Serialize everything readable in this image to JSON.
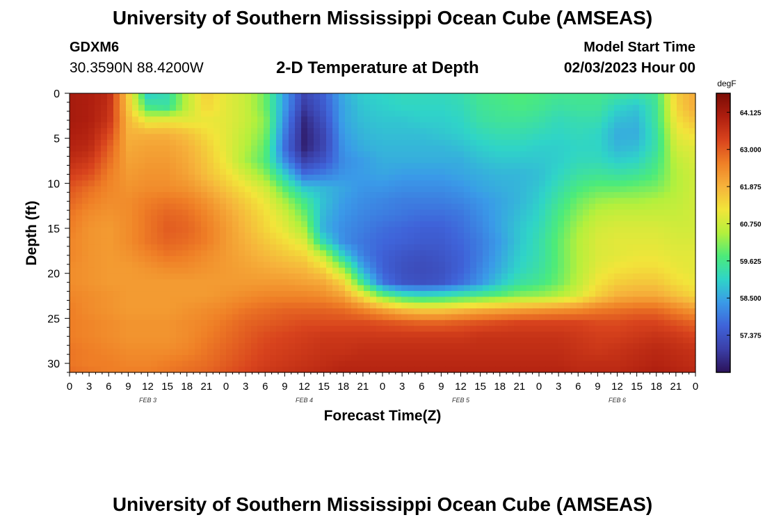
{
  "header": {
    "title": "University of Southern Mississippi Ocean Cube (AMSEAS)",
    "station": "GDXM6",
    "coords": "30.3590N  88.4200W",
    "plot_title": "2-D Temperature at Depth",
    "start_label": "Model Start Time",
    "start_value": "02/03/2023 Hour 00"
  },
  "footer": {
    "title": "University of Southern Mississippi Ocean Cube (AMSEAS)"
  },
  "chart_data": {
    "type": "heatmap",
    "title": "2-D Temperature at Depth",
    "xlabel": "Forecast Time(Z)",
    "ylabel": "Depth (ft)",
    "x_tick_labels": [
      "0",
      "3",
      "6",
      "9",
      "12",
      "15",
      "18",
      "21",
      "0",
      "3",
      "6",
      "9",
      "12",
      "15",
      "18",
      "21",
      "0",
      "3",
      "6",
      "9",
      "12",
      "15",
      "18",
      "21",
      "0",
      "3",
      "6",
      "9",
      "12",
      "15",
      "18",
      "21",
      "0"
    ],
    "x_range_hours": [
      0,
      96
    ],
    "date_labels": [
      {
        "label": "FEB 3",
        "hour": 12
      },
      {
        "label": "FEB 4",
        "hour": 36
      },
      {
        "label": "FEB 5",
        "hour": 60
      },
      {
        "label": "FEB 6",
        "hour": 84
      }
    ],
    "y_ticks": [
      "0",
      "5",
      "10",
      "15",
      "20",
      "25",
      "30"
    ],
    "y_range": [
      0,
      31
    ],
    "y_inverted": true,
    "colorbar": {
      "unit": "degF",
      "min": 56.25,
      "max": 64.7,
      "tick_labels": [
        "64.125",
        "63.000",
        "61.875",
        "60.750",
        "59.625",
        "58.500",
        "57.375"
      ],
      "tick_values": [
        64.125,
        63.0,
        61.875,
        60.75,
        59.625,
        58.5,
        57.375
      ],
      "colors": [
        "#2b1259",
        "#3b3fa8",
        "#3f63d9",
        "#3a9ae8",
        "#2fd4c8",
        "#4ceb7a",
        "#b4f03c",
        "#f2e53a",
        "#f6b23b",
        "#ef7f26",
        "#d8431d",
        "#ae1e0f",
        "#7a0c05"
      ]
    },
    "depth_levels_ft": [
      0,
      1.5,
      3,
      4.5,
      6,
      7.5,
      9,
      10.5,
      12,
      13.5,
      15,
      16.5,
      18,
      19.5,
      21,
      22.5,
      24,
      25.5,
      27,
      28.5,
      30,
      31
    ],
    "time_hours": [
      0,
      3,
      6,
      9,
      12,
      15,
      18,
      21,
      24,
      27,
      30,
      33,
      36,
      39,
      42,
      45,
      48,
      51,
      54,
      57,
      60,
      63,
      66,
      69,
      72,
      75,
      78,
      81,
      84,
      87,
      90,
      93,
      96
    ],
    "values_degF": [
      [
        64.1,
        64.0,
        63.8,
        61.5,
        59.0,
        59.3,
        60.6,
        61.5,
        61.0,
        60.7,
        60.0,
        58.4,
        57.1,
        57.6,
        58.6,
        59.0,
        59.1,
        59.2,
        59.2,
        59.2,
        59.3,
        59.6,
        59.7,
        59.8,
        59.7,
        59.6,
        59.6,
        59.6,
        59.5,
        59.4,
        59.6,
        61.5,
        62.0
      ],
      [
        64.1,
        64.0,
        63.7,
        61.6,
        59.6,
        59.4,
        60.6,
        61.4,
        61.0,
        60.7,
        60.0,
        58.4,
        56.9,
        57.5,
        58.5,
        58.9,
        59.0,
        59.1,
        59.1,
        59.1,
        59.2,
        59.5,
        59.6,
        59.7,
        59.6,
        59.4,
        59.5,
        59.5,
        59.1,
        58.9,
        59.5,
        61.4,
        62.0
      ],
      [
        64.1,
        64.0,
        63.6,
        61.8,
        61.0,
        61.1,
        61.0,
        61.1,
        61.0,
        60.7,
        60.2,
        58.2,
        56.6,
        57.3,
        58.5,
        58.8,
        58.9,
        58.9,
        59.0,
        59.0,
        59.1,
        59.4,
        59.5,
        59.5,
        59.4,
        59.2,
        59.3,
        59.3,
        58.8,
        58.7,
        59.5,
        61.2,
        61.7
      ],
      [
        64.0,
        63.9,
        63.3,
        61.9,
        61.9,
        61.9,
        61.7,
        61.3,
        61.0,
        60.6,
        60.1,
        58.0,
        56.5,
        57.1,
        58.4,
        58.7,
        58.8,
        58.8,
        58.8,
        58.9,
        59.0,
        59.2,
        59.3,
        59.3,
        59.2,
        59.1,
        59.2,
        59.1,
        58.6,
        58.6,
        59.4,
        61.0,
        61.3
      ],
      [
        63.9,
        63.8,
        63.0,
        62.0,
        62.1,
        62.1,
        61.9,
        61.5,
        61.0,
        60.5,
        59.9,
        57.8,
        56.5,
        57.1,
        58.3,
        58.6,
        58.7,
        58.7,
        58.7,
        58.7,
        58.8,
        59.0,
        59.1,
        59.1,
        59.0,
        59.0,
        59.1,
        59.1,
        58.7,
        58.8,
        59.4,
        60.8,
        61.0
      ],
      [
        63.7,
        63.5,
        62.8,
        62.1,
        62.2,
        62.2,
        62.0,
        61.6,
        61.1,
        60.4,
        59.8,
        58.2,
        57.0,
        57.4,
        58.2,
        58.4,
        58.6,
        58.6,
        58.6,
        58.6,
        58.6,
        58.8,
        58.9,
        58.9,
        58.9,
        59.0,
        59.2,
        59.2,
        59.0,
        59.1,
        59.6,
        60.6,
        60.9
      ],
      [
        63.4,
        63.2,
        62.6,
        62.2,
        62.3,
        62.3,
        62.1,
        61.7,
        61.3,
        60.8,
        60.2,
        59.0,
        57.8,
        58.0,
        58.3,
        58.4,
        58.5,
        58.4,
        58.4,
        58.4,
        58.5,
        58.6,
        58.7,
        58.7,
        58.8,
        59.1,
        59.4,
        59.5,
        59.4,
        59.5,
        59.8,
        60.5,
        60.8
      ],
      [
        63.1,
        62.8,
        62.5,
        62.3,
        62.4,
        62.4,
        62.3,
        62.0,
        61.6,
        61.2,
        60.8,
        59.8,
        58.9,
        58.7,
        58.5,
        58.3,
        58.3,
        58.2,
        58.2,
        58.2,
        58.3,
        58.5,
        58.6,
        58.7,
        58.9,
        59.3,
        59.7,
        59.9,
        59.9,
        60.0,
        60.1,
        60.5,
        60.8
      ],
      [
        62.9,
        62.6,
        62.4,
        62.4,
        62.6,
        62.7,
        62.6,
        62.3,
        61.9,
        61.5,
        61.1,
        60.4,
        59.6,
        58.8,
        58.4,
        58.2,
        58.1,
        58.0,
        58.0,
        58.0,
        58.1,
        58.3,
        58.5,
        58.7,
        59.0,
        59.5,
        60.0,
        60.3,
        60.4,
        60.4,
        60.5,
        60.6,
        60.8
      ],
      [
        62.7,
        62.4,
        62.3,
        62.4,
        62.7,
        62.9,
        62.8,
        62.5,
        62.1,
        61.7,
        61.3,
        60.8,
        60.0,
        58.7,
        58.3,
        58.1,
        58.0,
        57.9,
        57.8,
        57.8,
        57.9,
        58.2,
        58.5,
        58.8,
        59.1,
        59.7,
        60.2,
        60.6,
        60.7,
        60.7,
        60.7,
        60.7,
        60.8
      ],
      [
        62.6,
        62.3,
        62.2,
        62.4,
        62.7,
        63.0,
        62.9,
        62.6,
        62.2,
        61.8,
        61.4,
        61.0,
        60.4,
        58.6,
        58.2,
        58.0,
        57.8,
        57.7,
        57.6,
        57.6,
        57.8,
        58.1,
        58.5,
        58.9,
        59.2,
        59.8,
        60.4,
        60.8,
        60.9,
        60.9,
        60.9,
        60.8,
        60.8
      ],
      [
        62.5,
        62.3,
        62.2,
        62.4,
        62.7,
        62.9,
        62.8,
        62.6,
        62.2,
        61.9,
        61.6,
        61.3,
        60.9,
        59.2,
        58.2,
        57.9,
        57.7,
        57.6,
        57.5,
        57.5,
        57.7,
        58.0,
        58.4,
        58.9,
        59.3,
        59.9,
        60.5,
        60.9,
        61.0,
        61.0,
        61.0,
        60.9,
        60.9
      ],
      [
        62.5,
        62.3,
        62.2,
        62.3,
        62.5,
        62.7,
        62.6,
        62.4,
        62.2,
        62.0,
        61.8,
        61.6,
        61.4,
        60.6,
        59.0,
        58.0,
        57.6,
        57.4,
        57.3,
        57.4,
        57.6,
        58.0,
        58.5,
        59.0,
        59.3,
        59.9,
        60.5,
        60.9,
        61.0,
        61.1,
        61.1,
        61.0,
        61.0
      ],
      [
        62.4,
        62.3,
        62.2,
        62.2,
        62.3,
        62.4,
        62.4,
        62.3,
        62.2,
        62.1,
        62.0,
        61.9,
        61.8,
        61.4,
        60.3,
        58.5,
        57.6,
        57.3,
        57.2,
        57.3,
        57.6,
        58.1,
        58.6,
        59.1,
        59.4,
        59.9,
        60.5,
        61.0,
        61.2,
        61.3,
        61.3,
        61.1,
        61.0
      ],
      [
        62.4,
        62.3,
        62.2,
        62.2,
        62.2,
        62.2,
        62.2,
        62.2,
        62.2,
        62.2,
        62.2,
        62.2,
        62.1,
        62.0,
        61.4,
        59.5,
        57.9,
        57.4,
        57.3,
        57.4,
        57.8,
        58.3,
        58.9,
        59.4,
        59.6,
        60.0,
        60.6,
        61.2,
        61.5,
        61.6,
        61.6,
        61.3,
        61.1
      ],
      [
        62.5,
        62.4,
        62.3,
        62.2,
        62.2,
        62.2,
        62.2,
        62.2,
        62.3,
        62.4,
        62.5,
        62.5,
        62.5,
        62.4,
        62.1,
        61.2,
        60.0,
        59.4,
        59.2,
        59.3,
        59.5,
        59.7,
        59.9,
        60.2,
        60.3,
        60.5,
        60.9,
        61.5,
        61.9,
        62.0,
        62.0,
        61.7,
        61.4
      ],
      [
        62.6,
        62.4,
        62.3,
        62.2,
        62.2,
        62.2,
        62.3,
        62.4,
        62.5,
        62.7,
        62.8,
        62.9,
        62.9,
        62.9,
        62.8,
        62.5,
        62.1,
        61.7,
        61.5,
        61.5,
        61.7,
        61.9,
        62.0,
        62.1,
        62.2,
        62.3,
        62.4,
        62.6,
        62.7,
        62.8,
        62.8,
        62.5,
        62.2
      ],
      [
        62.6,
        62.5,
        62.4,
        62.3,
        62.3,
        62.3,
        62.4,
        62.5,
        62.7,
        62.9,
        63.0,
        63.1,
        63.2,
        63.2,
        63.2,
        63.2,
        63.1,
        63.0,
        62.9,
        62.9,
        63.0,
        63.1,
        63.2,
        63.3,
        63.3,
        63.3,
        63.3,
        63.2,
        63.2,
        63.3,
        63.3,
        63.1,
        62.9
      ],
      [
        62.6,
        62.5,
        62.4,
        62.3,
        62.3,
        62.3,
        62.4,
        62.6,
        62.8,
        63.0,
        63.2,
        63.3,
        63.4,
        63.5,
        63.5,
        63.5,
        63.5,
        63.5,
        63.5,
        63.5,
        63.5,
        63.6,
        63.6,
        63.6,
        63.6,
        63.6,
        63.5,
        63.4,
        63.4,
        63.5,
        63.6,
        63.5,
        63.3
      ],
      [
        62.7,
        62.6,
        62.5,
        62.4,
        62.4,
        62.4,
        62.5,
        62.7,
        62.9,
        63.1,
        63.3,
        63.4,
        63.5,
        63.6,
        63.6,
        63.7,
        63.7,
        63.7,
        63.7,
        63.7,
        63.7,
        63.7,
        63.7,
        63.7,
        63.7,
        63.7,
        63.6,
        63.5,
        63.6,
        63.7,
        63.8,
        63.7,
        63.6
      ],
      [
        62.7,
        62.6,
        62.6,
        62.5,
        62.5,
        62.6,
        62.7,
        62.8,
        63.0,
        63.2,
        63.4,
        63.5,
        63.6,
        63.7,
        63.8,
        63.8,
        63.8,
        63.8,
        63.8,
        63.8,
        63.8,
        63.8,
        63.8,
        63.8,
        63.8,
        63.8,
        63.7,
        63.7,
        63.7,
        63.8,
        63.9,
        63.8,
        63.7
      ],
      [
        62.8,
        62.7,
        62.6,
        62.6,
        62.6,
        62.7,
        62.8,
        62.9,
        63.1,
        63.3,
        63.5,
        63.6,
        63.7,
        63.8,
        63.9,
        63.9,
        63.9,
        63.9,
        63.9,
        63.9,
        63.9,
        63.9,
        63.9,
        63.9,
        63.9,
        63.9,
        63.8,
        63.8,
        63.8,
        63.9,
        64.0,
        63.9,
        63.8
      ]
    ]
  }
}
